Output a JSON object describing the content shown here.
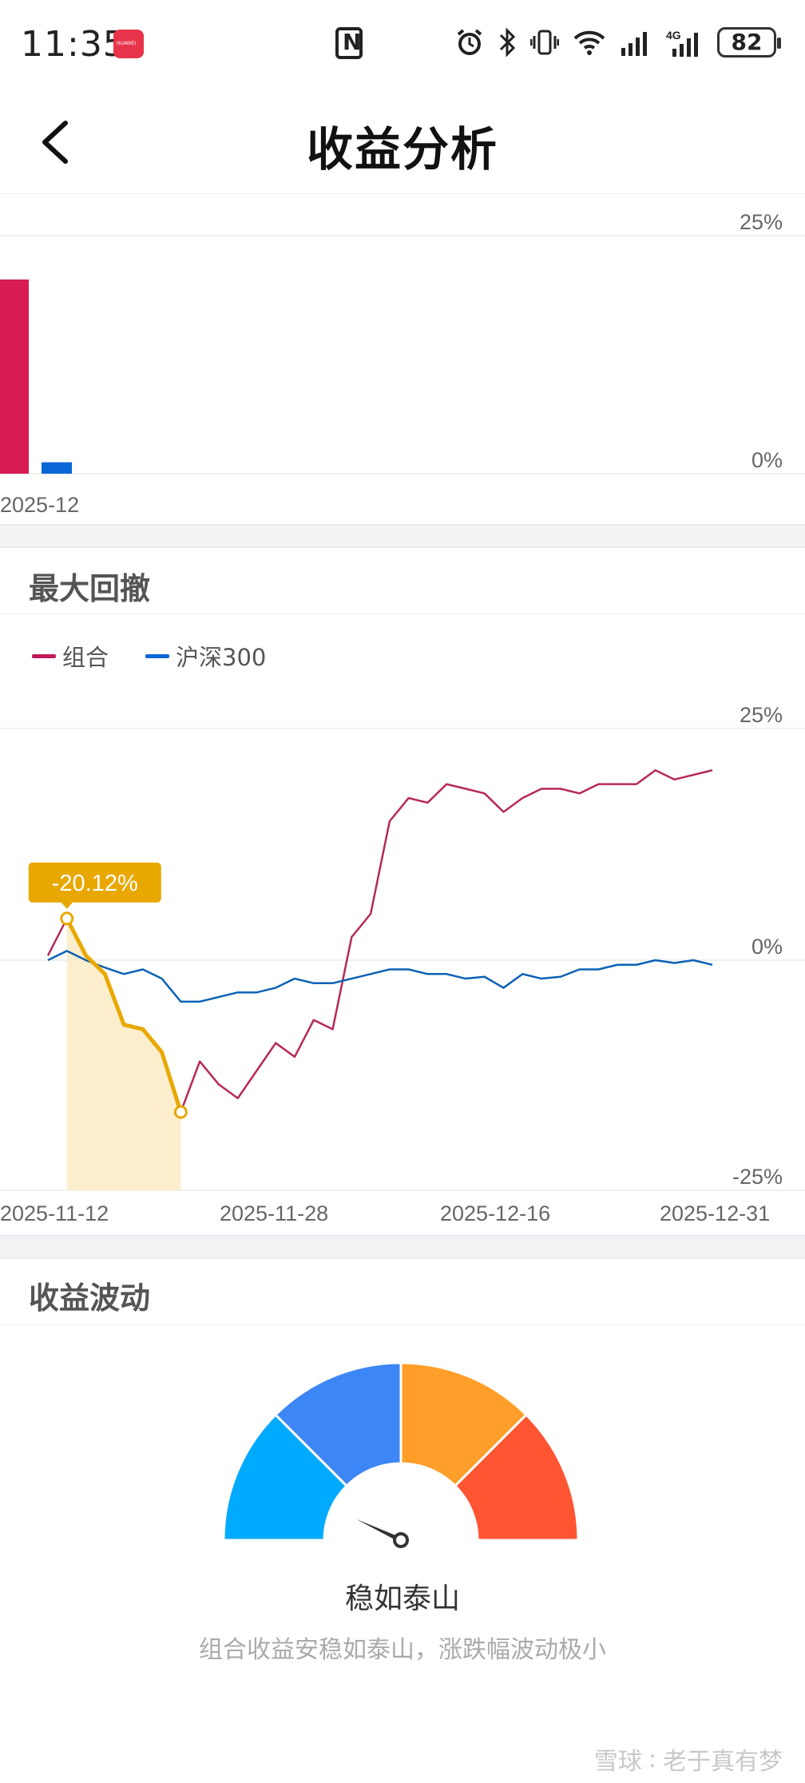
{
  "status_bar": {
    "time": "11:35",
    "app_badge_text": "HUAWEI",
    "battery": "82",
    "network_label": "4G"
  },
  "header": {
    "title": "收益分析",
    "back_icon": "chevron-left-icon"
  },
  "monthly_bar_chart": {
    "chart_data": {
      "type": "bar",
      "categories": [
        "2025-12"
      ],
      "series": [
        {
          "name": "组合",
          "values": [
            20.4
          ],
          "color": "#d81b50"
        },
        {
          "name": "沪深300",
          "values": [
            1.2
          ],
          "color": "#0a66d6"
        }
      ],
      "y_tick_labels": [
        "25%",
        "0%"
      ],
      "ylim": [
        0,
        25
      ]
    }
  },
  "drawdown": {
    "title": "最大回撤",
    "legend": [
      {
        "label": "组合",
        "color": "#c2185b"
      },
      {
        "label": "沪深300",
        "color": "#0a66d6"
      }
    ],
    "tooltip": "-20.12%",
    "chart_data": {
      "type": "line",
      "x_tick_labels": [
        "2025-11-12",
        "2025-11-28",
        "2025-12-16",
        "2025-12-31"
      ],
      "y_tick_labels": [
        "25%",
        "0%",
        "-25%"
      ],
      "ylim": [
        -25,
        25
      ],
      "series": [
        {
          "name": "组合",
          "color": "#b5295a",
          "values": [
            0.5,
            4.5,
            0.5,
            -1.5,
            -7,
            -7.5,
            -10,
            -16.5,
            -11,
            -13.5,
            -15,
            -12,
            -9,
            -10.5,
            -6.5,
            -7.5,
            2.5,
            5,
            15,
            17.5,
            17,
            19,
            18.5,
            18,
            16,
            17.5,
            18.5,
            18.5,
            18,
            19,
            19,
            19,
            20.5,
            19.5,
            20,
            20.5
          ]
        },
        {
          "name": "沪深300",
          "color": "#0b62b5",
          "values": [
            0,
            1,
            0,
            -0.8,
            -1.5,
            -1,
            -2,
            -4.5,
            -4.5,
            -4,
            -3.5,
            -3.5,
            -3,
            -2,
            -2.5,
            -2.5,
            -2,
            -1.5,
            -1,
            -1,
            -1.5,
            -1.5,
            -2,
            -1.8,
            -3,
            -1.5,
            -2,
            -1.8,
            -1,
            -1,
            -0.5,
            -0.5,
            0,
            -0.3,
            0,
            -0.5
          ]
        }
      ],
      "max_drawdown": {
        "value": -20.12,
        "start_index": 1,
        "end_index": 7,
        "color": "#e8a800",
        "fill": "#fdeece"
      }
    }
  },
  "volatility": {
    "title": "收益波动",
    "gauge": {
      "segments": [
        "#00aaff",
        "#3d86f5",
        "#ff9f2a",
        "#ff5533"
      ],
      "needle_value": 0.14
    },
    "level_label": "稳如泰山",
    "description": "组合收益安稳如泰山，涨跌幅波动极小"
  },
  "watermark": {
    "brand": "雪球",
    "author": "老于真有梦"
  }
}
